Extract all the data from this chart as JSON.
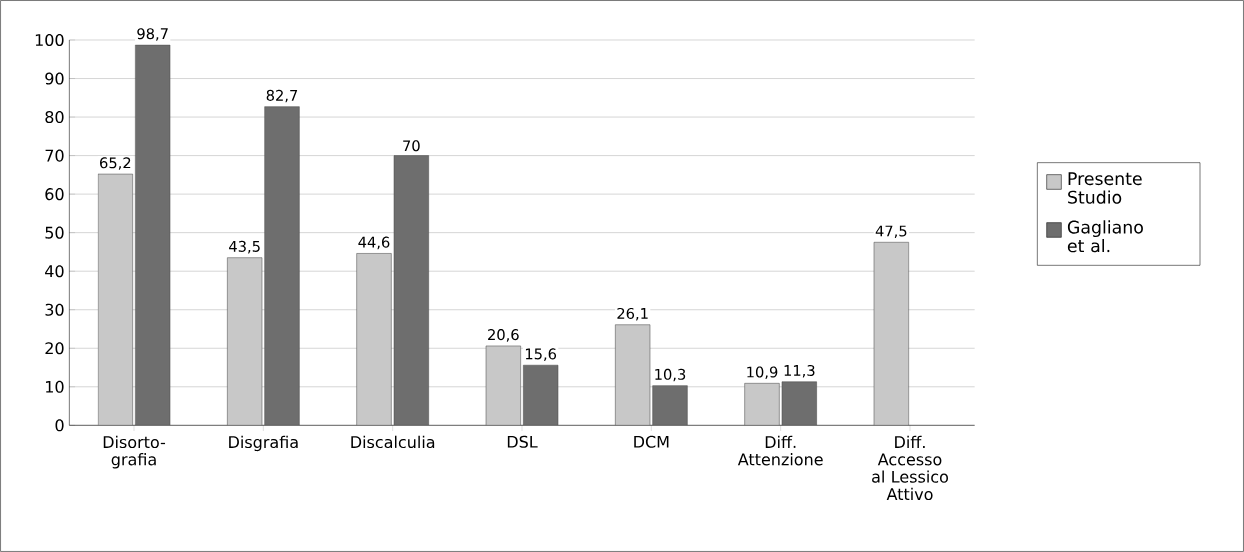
{
  "chart_data": {
    "type": "bar",
    "categories": [
      "Disorto-grafia",
      "Disgrafia",
      "Discalculia",
      "DSL",
      "DCM",
      "Diff. Attenzione",
      "Diff. Accesso al Lessico Attivo"
    ],
    "series": [
      {
        "name": "Presente Studio",
        "color": "#c8c8c8",
        "values": [
          65.2,
          43.5,
          44.6,
          20.6,
          26.1,
          10.9,
          47.5
        ],
        "value_labels": [
          "65,2",
          "43,5",
          "44,6",
          "20,6",
          "26,1",
          "10,9",
          "47,5"
        ]
      },
      {
        "name": "Gagliano et al.",
        "color": "#6e6e6e",
        "values": [
          98.7,
          82.7,
          70,
          15.6,
          10.3,
          11.3,
          null
        ],
        "value_labels": [
          "98,7",
          "82,7",
          "70",
          "15,6",
          "10,3",
          "11,3",
          null
        ]
      }
    ],
    "ylim": [
      0,
      100
    ],
    "yticks": [
      0,
      10,
      20,
      30,
      40,
      50,
      60,
      70,
      80,
      90,
      100
    ],
    "grid": "y",
    "legend": "right"
  }
}
